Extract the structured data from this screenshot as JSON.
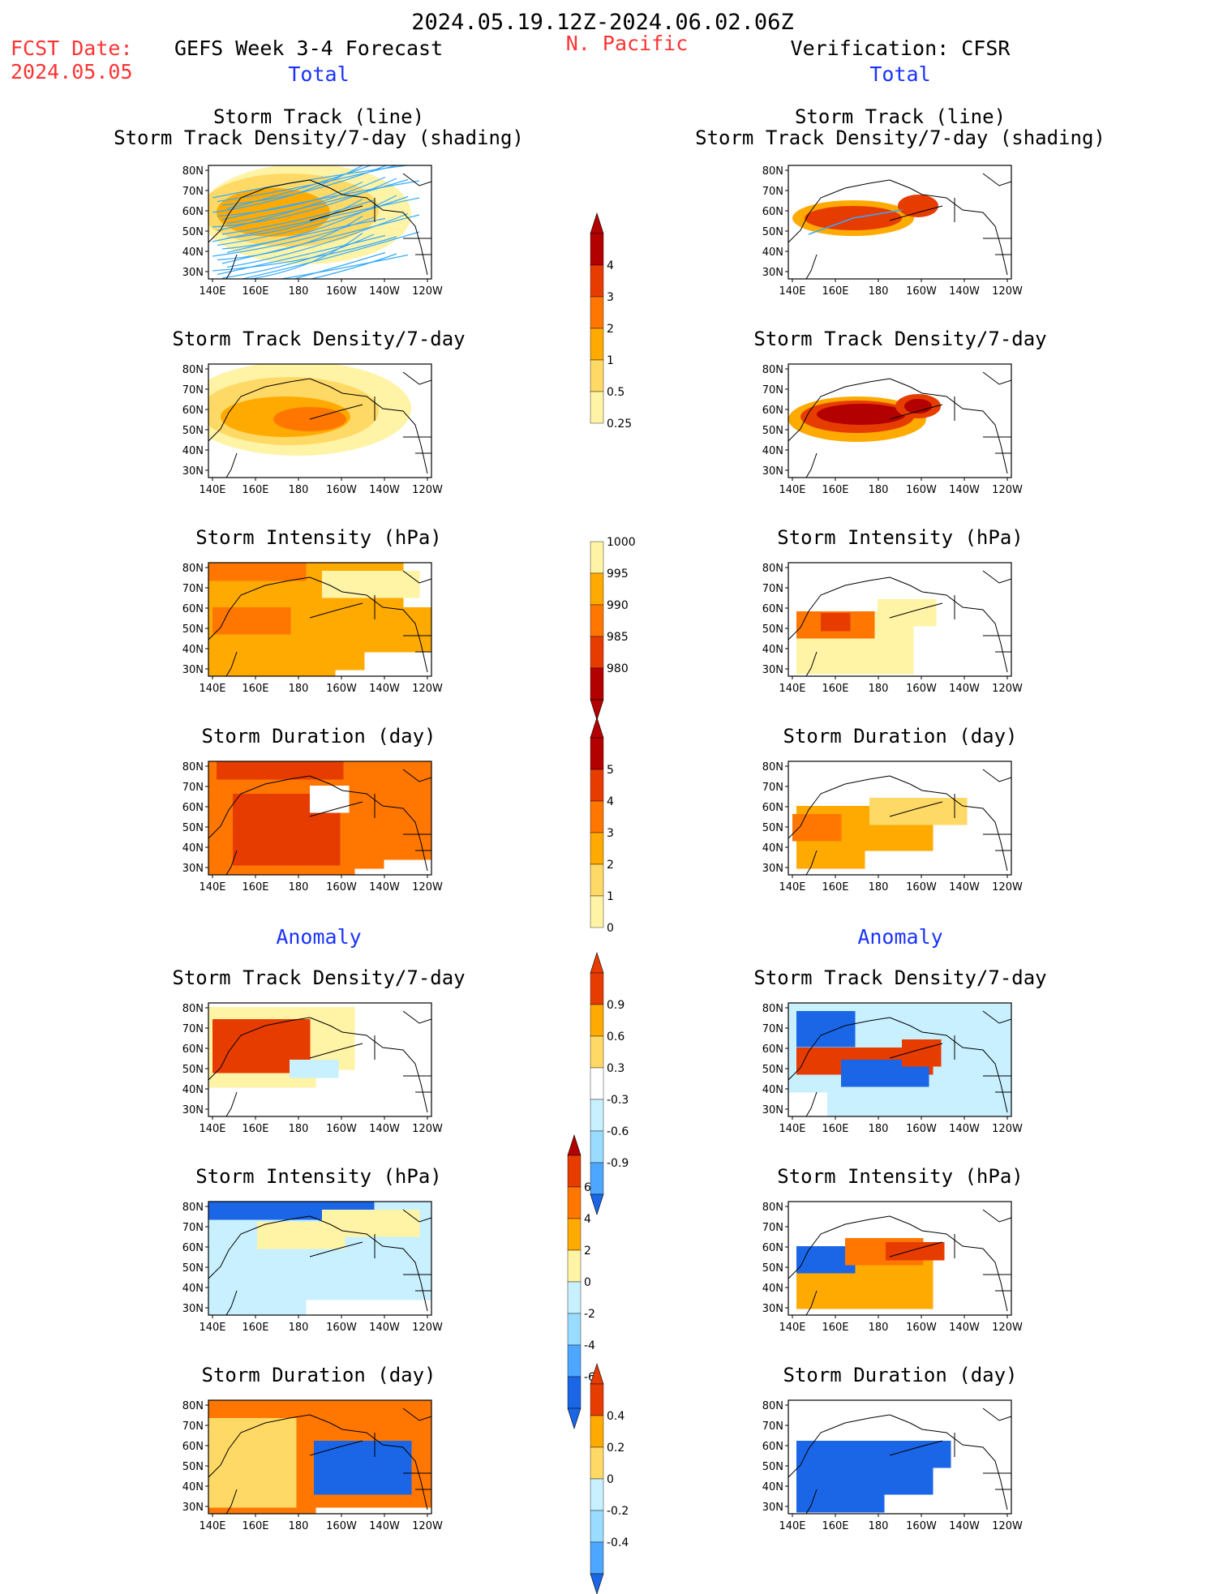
{
  "header": {
    "date_range": "2024.05.19.12Z-2024.06.02.06Z",
    "fcst_date_label": "FCST Date:",
    "fcst_date_value": "2024.05.05",
    "forecast_title": "GEFS Week 3-4 Forecast",
    "region": "N. Pacific",
    "verification_title": "Verification: CFSR"
  },
  "sections": {
    "total_left": "Total",
    "total_right": "Total",
    "anomaly_left": "Anomaly",
    "anomaly_right": "Anomaly"
  },
  "panel_titles": {
    "track_line_1": "Storm Track (line)",
    "track_line_2": "Storm Track Density/7-day (shading)",
    "density": "Storm Track Density/7-day",
    "intensity": "Storm Intensity (hPa)",
    "duration": "Storm Duration (day)"
  },
  "axes": {
    "lat_ticks": [
      "80N",
      "70N",
      "60N",
      "50N",
      "40N",
      "30N"
    ],
    "lon_ticks": [
      "140E",
      "160E",
      "180",
      "160W",
      "140W",
      "120W"
    ]
  },
  "colorbars": {
    "density_total": [
      "4",
      "3",
      "2",
      "1",
      "0.5",
      "0.25"
    ],
    "intensity_total": [
      "1000",
      "995",
      "990",
      "985",
      "980"
    ],
    "duration_total": [
      "5",
      "4",
      "3",
      "2",
      "1",
      "0"
    ],
    "density_anom": [
      "0.9",
      "0.6",
      "0.3",
      "-0.3",
      "-0.6",
      "-0.9"
    ],
    "intensity_anom": [
      "6",
      "4",
      "2",
      "0",
      "-2",
      "-4",
      "-6"
    ],
    "duration_anom": [
      "0.4",
      "0.2",
      "0",
      "-0.2",
      "-0.4"
    ]
  },
  "colors": {
    "title_red": "#ff3333",
    "section_blue": "#1a33ff",
    "track_line": "#33aaff",
    "scale_warm": [
      "#fff3a6",
      "#ffd966",
      "#ffaa00",
      "#ff7700",
      "#e63c00",
      "#b30000"
    ],
    "scale_cool": [
      "#c8f0ff",
      "#99dcff",
      "#4da6ff",
      "#1a66e6"
    ]
  }
}
